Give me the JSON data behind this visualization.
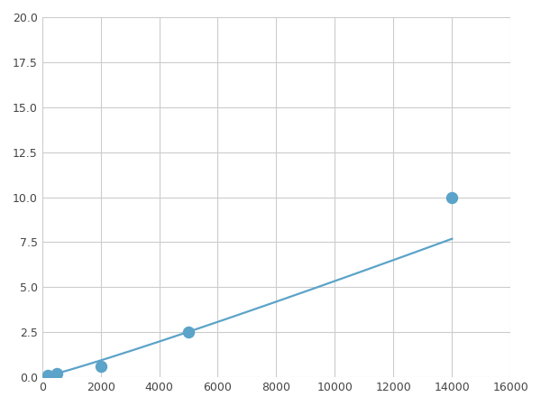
{
  "x": [
    200,
    500,
    2000,
    5000,
    14000
  ],
  "y": [
    0.1,
    0.2,
    0.6,
    2.5,
    10.0
  ],
  "line_color": "#5ba3c9",
  "marker_color": "#5ba3c9",
  "marker_size": 5,
  "line_width": 1.6,
  "xlim": [
    0,
    16000
  ],
  "ylim": [
    0,
    20.0
  ],
  "xticks": [
    0,
    2000,
    4000,
    6000,
    8000,
    10000,
    12000,
    14000,
    16000
  ],
  "yticks": [
    0.0,
    2.5,
    5.0,
    7.5,
    10.0,
    12.5,
    15.0,
    17.5,
    20.0
  ],
  "grid_color": "#cccccc",
  "background_color": "#ffffff",
  "figure_color": "#ffffff"
}
